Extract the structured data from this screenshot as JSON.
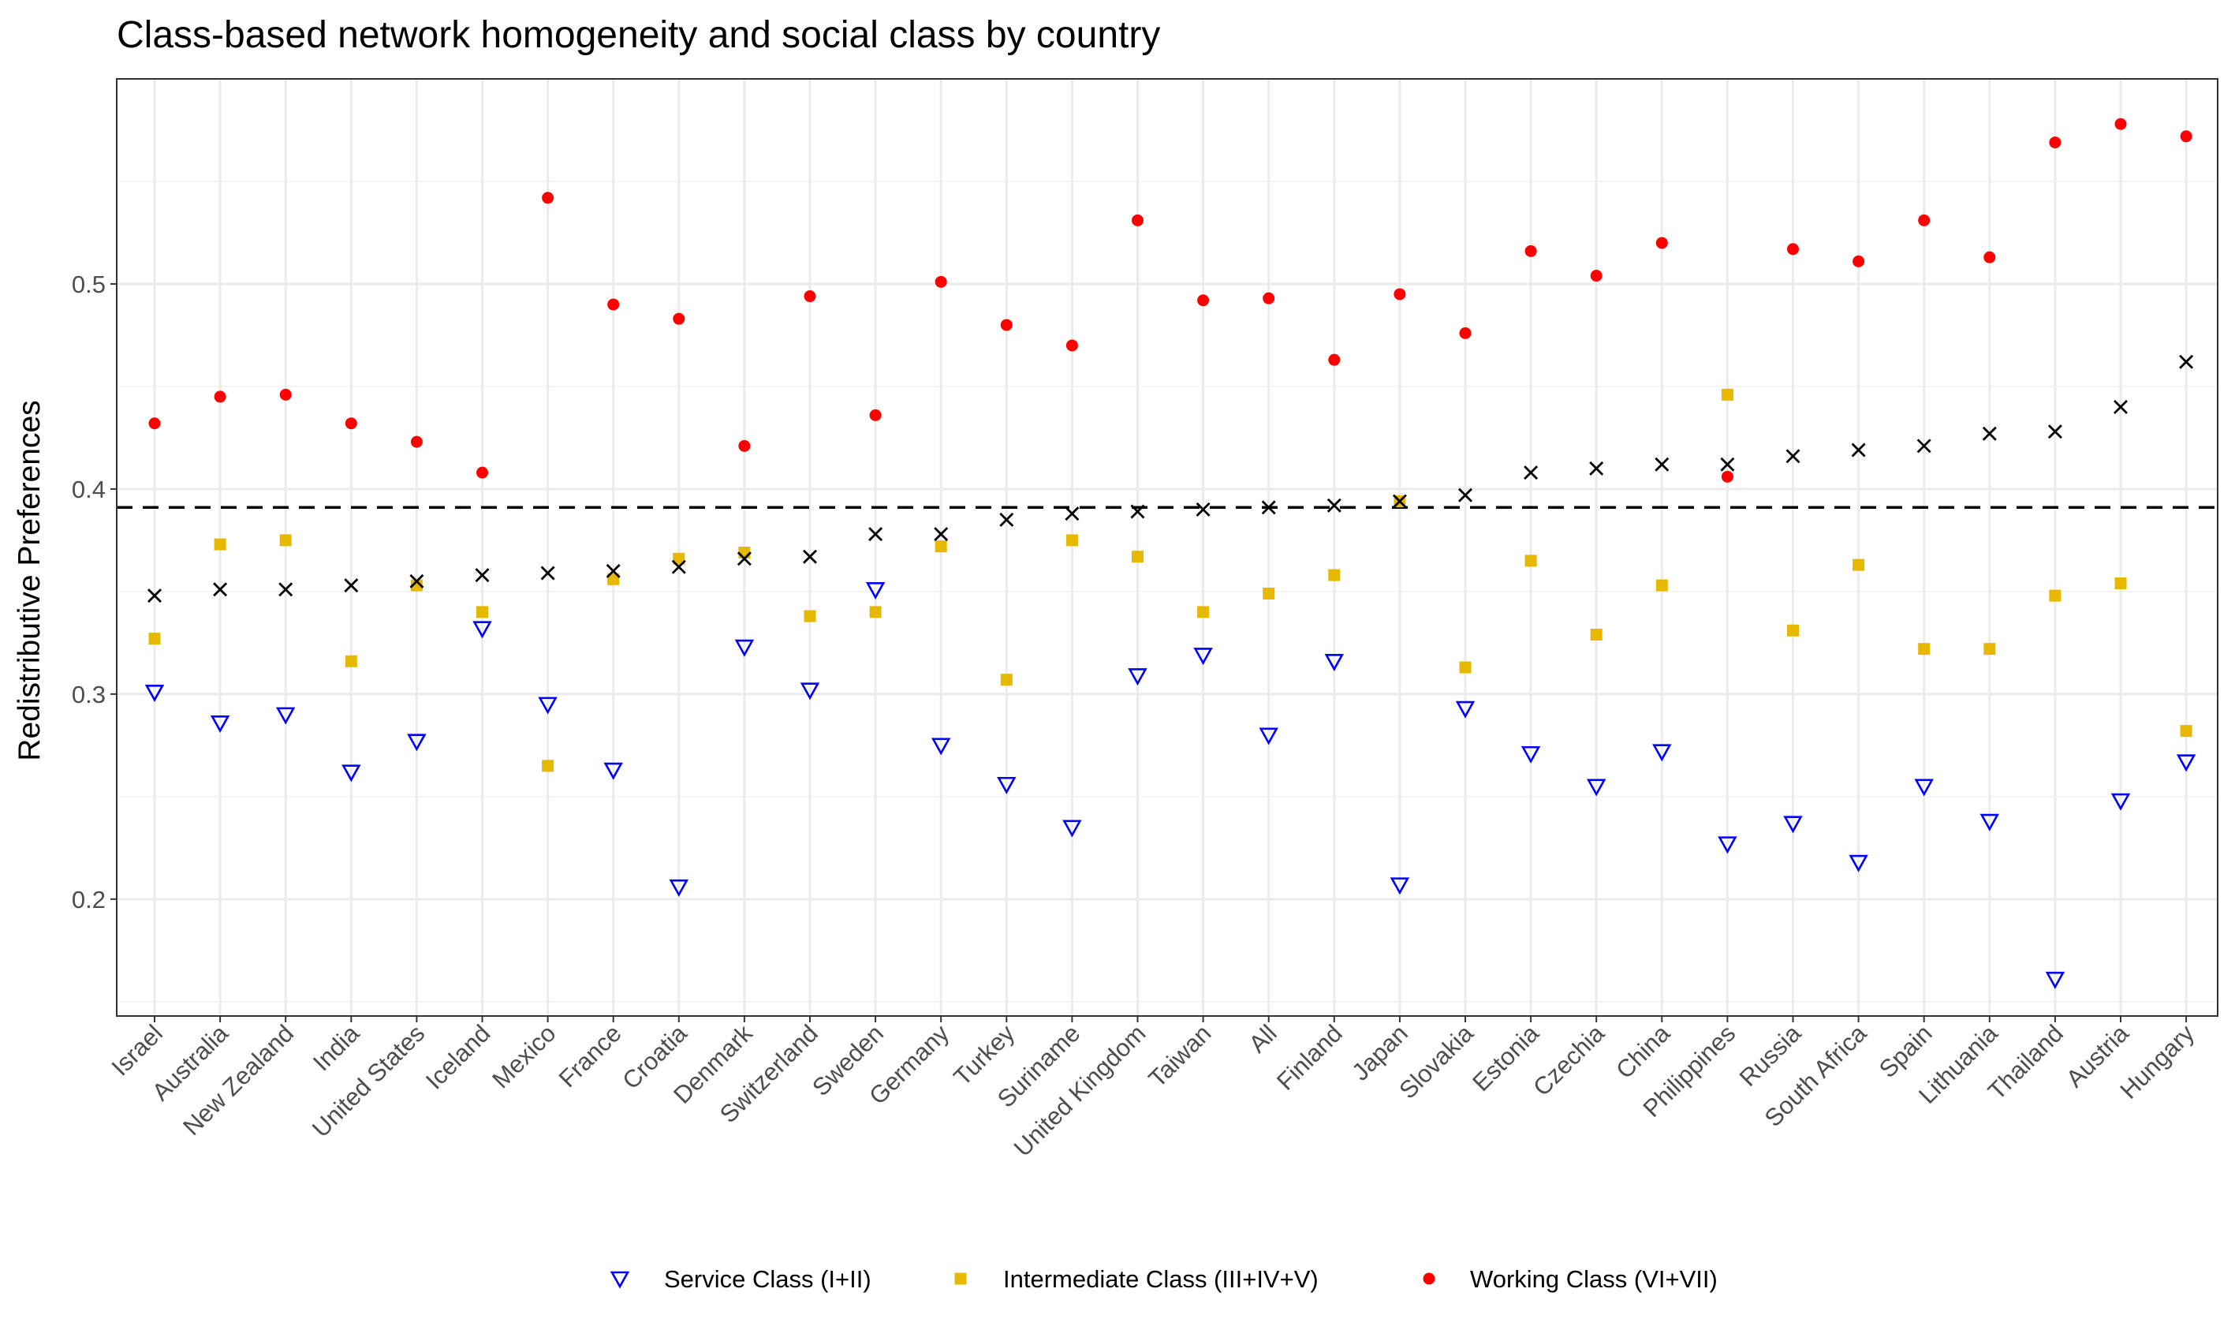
{
  "chart_data": {
    "type": "scatter",
    "title": "Class-based network homogeneity and social class by country",
    "ylabel": "Redistributive Preferences",
    "xlabel": "",
    "ylim": [
      0.143,
      0.6
    ],
    "yticks": [
      "0.2",
      "0.3",
      "0.4",
      "0.5"
    ],
    "grid": true,
    "legend_position": "bottom",
    "reference_line": 0.391,
    "categories": [
      "Israel",
      "Australia",
      "New Zealand",
      "India",
      "United States",
      "Iceland",
      "Mexico",
      "France",
      "Croatia",
      "Denmark",
      "Switzerland",
      "Sweden",
      "Germany",
      "Turkey",
      "Suriname",
      "United Kingdom",
      "Taiwan",
      "All",
      "Finland",
      "Japan",
      "Slovakia",
      "Estonia",
      "Czechia",
      "China",
      "Philippines",
      "Russia",
      "South Africa",
      "Spain",
      "Lithuania",
      "Thailand",
      "Austria",
      "Hungary"
    ],
    "series": [
      {
        "name": "Service Class (I+II)",
        "color": "#0000ff",
        "marker": "triangle-down-open",
        "values": [
          0.301,
          0.286,
          0.29,
          0.262,
          0.277,
          0.332,
          0.295,
          0.263,
          0.206,
          0.323,
          0.302,
          0.351,
          0.275,
          0.256,
          0.235,
          0.309,
          0.319,
          0.28,
          0.316,
          0.207,
          0.293,
          0.271,
          0.255,
          0.272,
          0.227,
          0.237,
          0.218,
          0.255,
          0.238,
          0.161,
          0.248,
          0.267
        ]
      },
      {
        "name": "Intermediate Class (III+IV+V)",
        "color": "#e6b800",
        "marker": "square",
        "values": [
          0.327,
          0.373,
          0.375,
          0.316,
          0.353,
          0.34,
          0.265,
          0.356,
          0.366,
          0.369,
          0.338,
          0.34,
          0.372,
          0.307,
          0.375,
          0.367,
          0.34,
          0.349,
          0.358,
          0.394,
          0.313,
          0.365,
          0.329,
          0.353,
          0.446,
          0.331,
          0.363,
          0.322,
          0.322,
          0.348,
          0.354,
          0.282
        ]
      },
      {
        "name": "Working Class (VI+VII)",
        "color": "#ff0000",
        "marker": "circle",
        "values": [
          0.432,
          0.445,
          0.446,
          0.432,
          0.423,
          0.408,
          0.542,
          0.49,
          0.483,
          0.421,
          0.494,
          0.436,
          0.501,
          0.48,
          0.47,
          0.531,
          0.492,
          0.493,
          0.463,
          0.495,
          0.476,
          0.516,
          0.504,
          0.52,
          0.406,
          0.517,
          0.511,
          0.531,
          0.513,
          0.569,
          0.578,
          0.572
        ]
      },
      {
        "name": "",
        "color": "#000000",
        "marker": "x",
        "values": [
          0.348,
          0.351,
          0.351,
          0.353,
          0.355,
          0.358,
          0.359,
          0.36,
          0.362,
          0.366,
          0.367,
          0.378,
          0.378,
          0.385,
          0.388,
          0.389,
          0.39,
          0.391,
          0.392,
          0.394,
          0.397,
          0.408,
          0.41,
          0.412,
          0.412,
          0.416,
          0.419,
          0.421,
          0.427,
          0.428,
          0.44,
          0.462
        ]
      }
    ]
  }
}
